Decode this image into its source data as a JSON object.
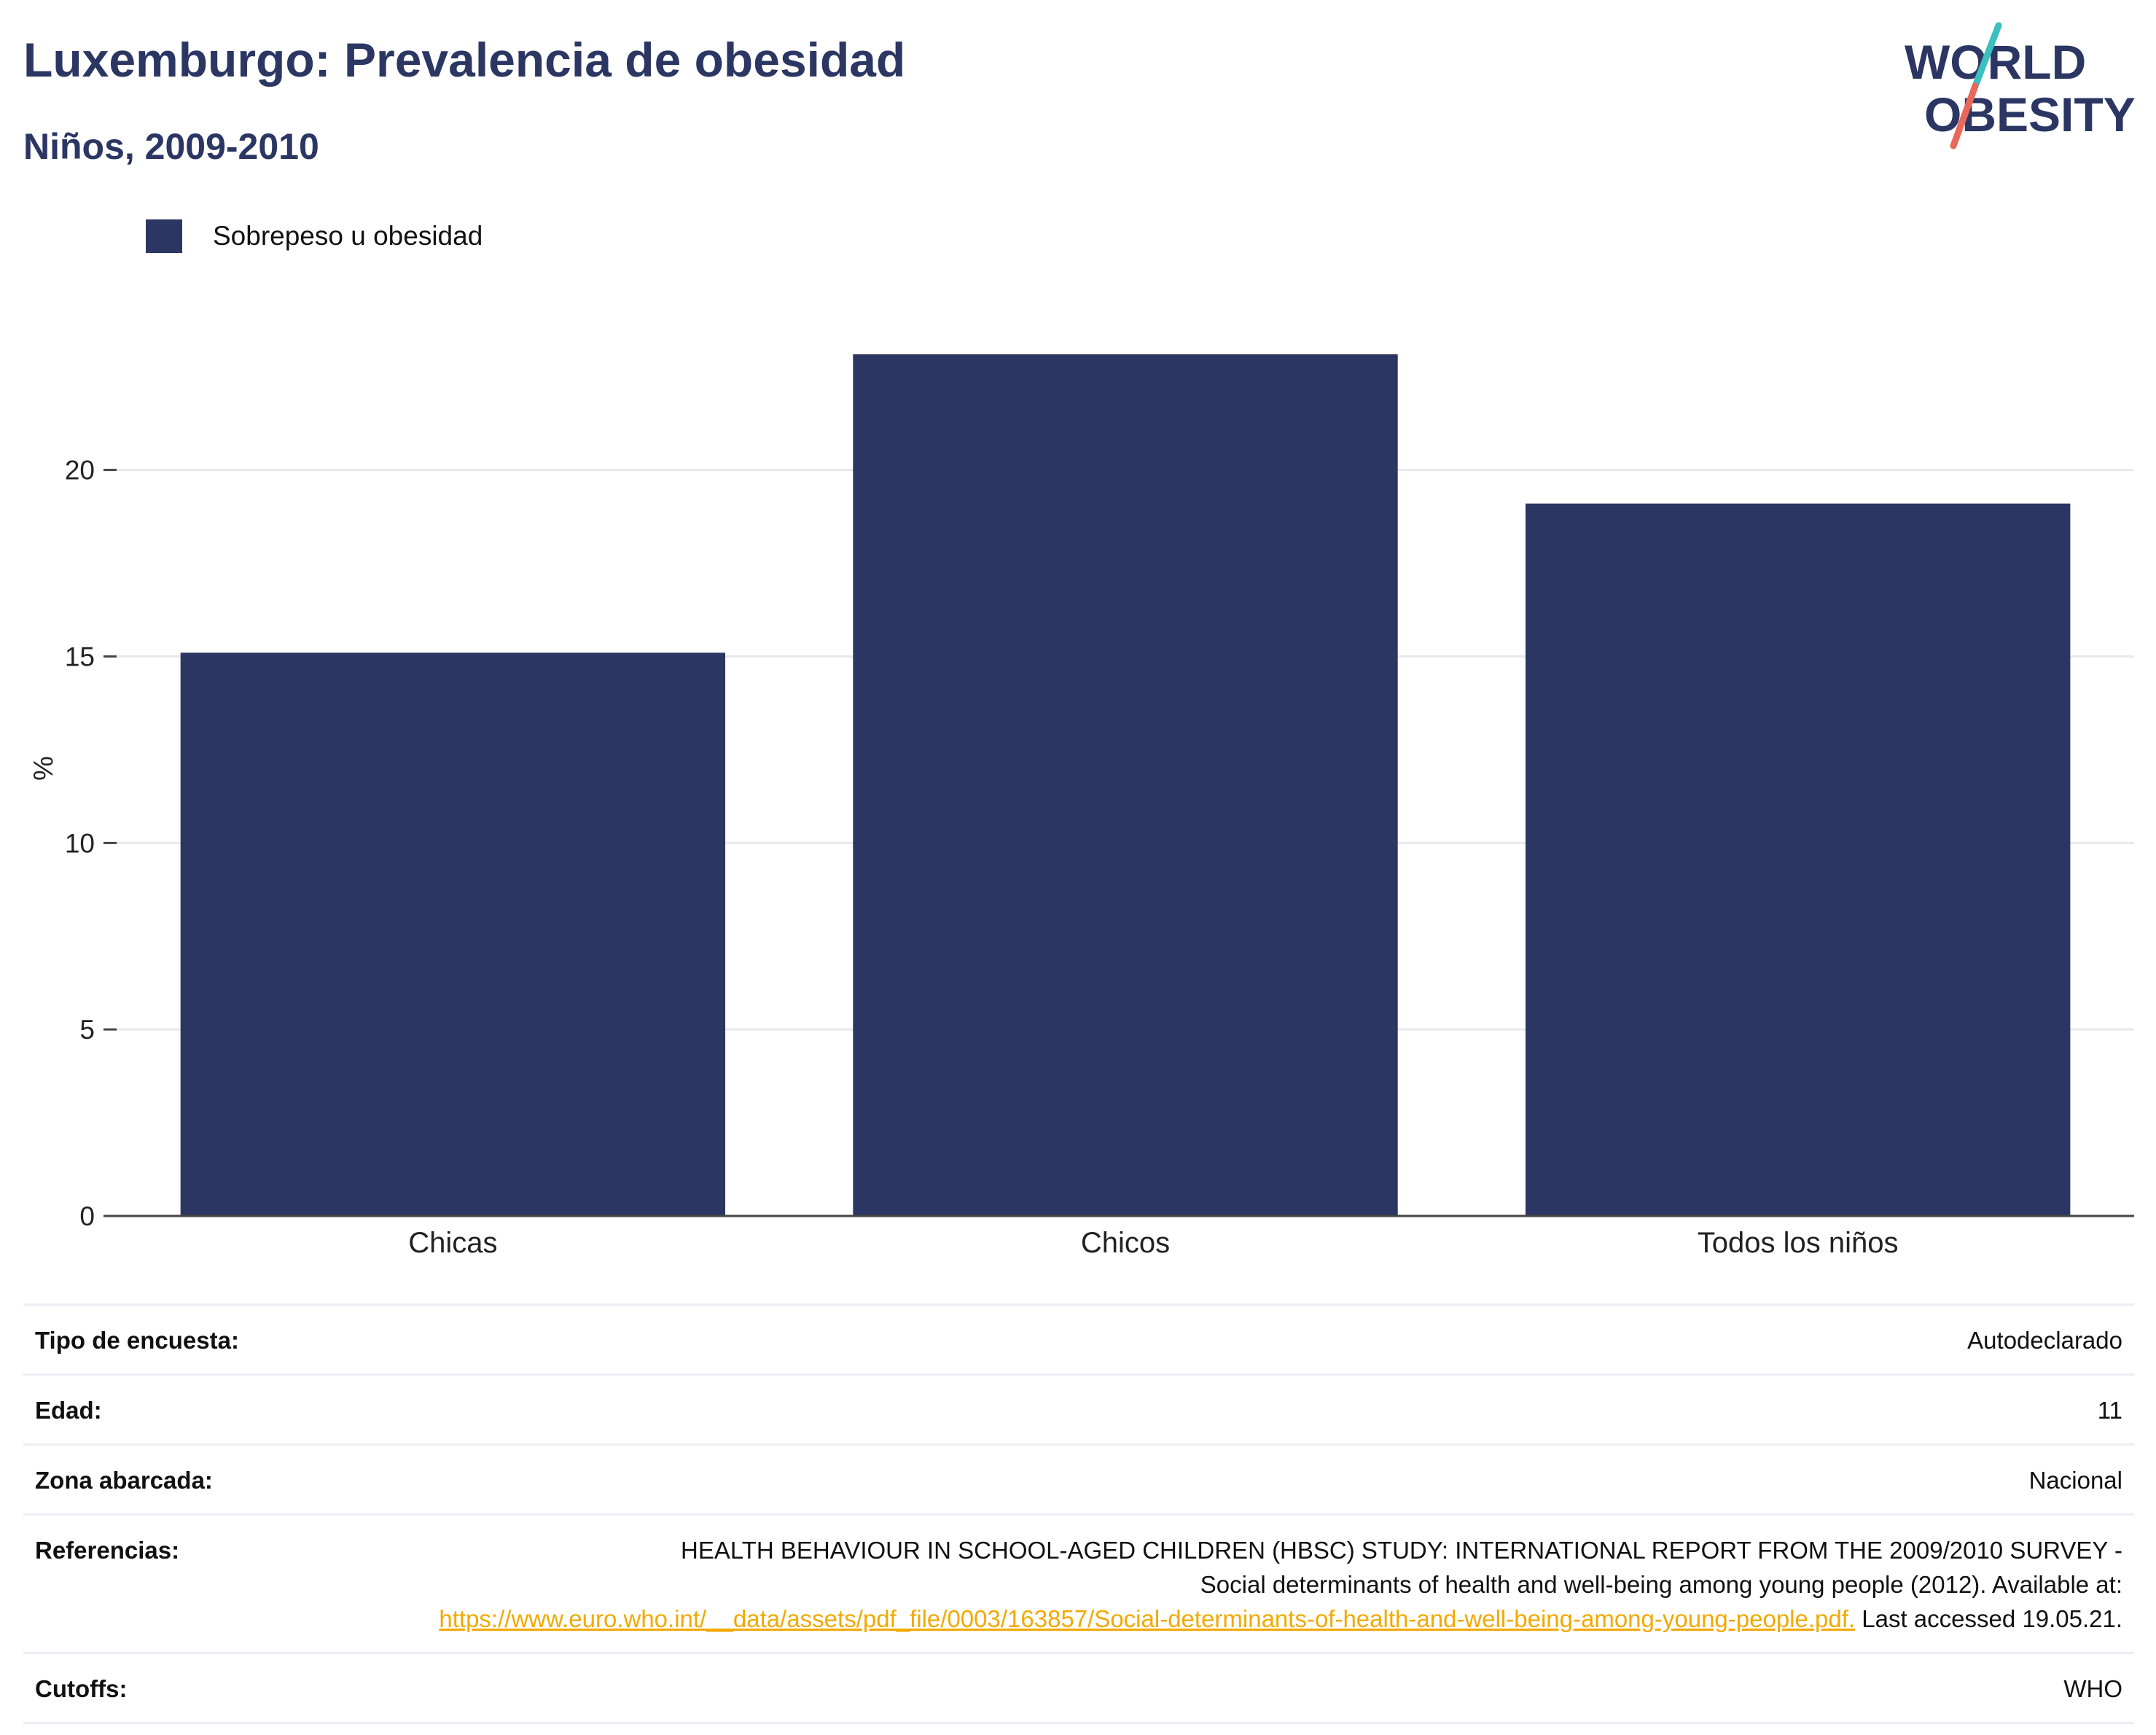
{
  "header": {
    "title": "Luxemburgo: Prevalencia de obesidad",
    "subtitle": "Niños, 2009-2010"
  },
  "logo": {
    "line1": "WORLD",
    "line2": "OBESITY",
    "colors": {
      "text": "#2b3663",
      "accent_top": "#3bbfbf",
      "accent_bottom": "#e8685a"
    }
  },
  "legend": {
    "label": "Sobrepeso u obesidad",
    "color": "#2b3663"
  },
  "chart_data": {
    "type": "bar",
    "categories": [
      "Chicas",
      "Chicos",
      "Todos los niños"
    ],
    "series": [
      {
        "name": "Sobrepeso u obesidad",
        "values": [
          15.1,
          23.1,
          19.1
        ],
        "color": "#2b3663"
      }
    ],
    "ylabel": "%",
    "xlabel": "",
    "ylim": [
      0,
      24
    ],
    "yticks": [
      0,
      5,
      10,
      15,
      20
    ],
    "grid": true,
    "legend_position": "top-left"
  },
  "info": {
    "survey_type": {
      "label": "Tipo de encuesta:",
      "value": "Autodeclarado"
    },
    "age": {
      "label": "Edad:",
      "value": "11"
    },
    "area": {
      "label": "Zona abarcada:",
      "value": "Nacional"
    },
    "references": {
      "label": "Referencias:",
      "text_line1": "HEALTH BEHAVIOUR IN SCHOOL-AGED CHILDREN (HBSC) STUDY: INTERNATIONAL REPORT FROM THE 2009/2010 SURVEY -",
      "text_line2": "Social determinants of health and well-being among young people (2012). Available at:",
      "link": "https://www.euro.who.int/__data/assets/pdf_file/0003/163857/Social-determinants-of-health-and-well-being-among-young-people.pdf.",
      "suffix": "Last accessed 19.05.21."
    },
    "cutoffs": {
      "label": "Cutoffs:",
      "value": "WHO"
    }
  }
}
